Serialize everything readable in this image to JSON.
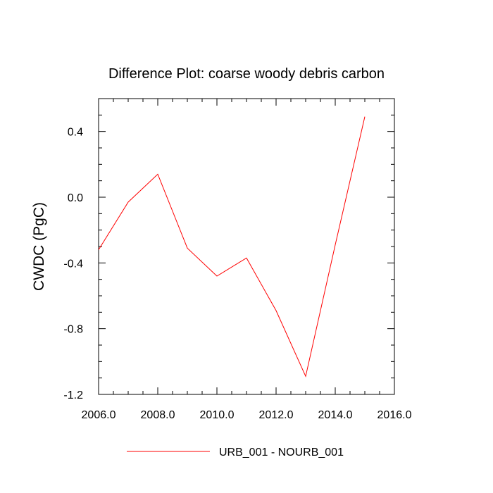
{
  "chart_data": {
    "type": "line",
    "title": "Difference Plot: coarse woody debris carbon",
    "ylabel": "CWDC  (PgC)",
    "xlabel": "",
    "xlim": [
      2006.0,
      2016.0
    ],
    "ylim": [
      -1.2,
      0.6
    ],
    "x_ticks": [
      2006.0,
      2008.0,
      2010.0,
      2012.0,
      2014.0,
      2016.0
    ],
    "x_tick_labels": [
      "2006.0",
      "2008.0",
      "2010.0",
      "2012.0",
      "2014.0",
      "2016.0"
    ],
    "y_ticks": [
      -1.2,
      -0.8,
      -0.4,
      0.0,
      0.4
    ],
    "y_tick_labels": [
      "-1.2",
      "-0.8",
      "-0.4",
      "0.0",
      "0.4"
    ],
    "grid": false,
    "legend_position": "bottom-center",
    "series": [
      {
        "name": "URB_001 - NOURB_001",
        "color": "#ff0000",
        "x": [
          2006,
          2007,
          2008,
          2009,
          2010,
          2011,
          2012,
          2013,
          2014,
          2015
        ],
        "values": [
          -0.32,
          -0.03,
          0.14,
          -0.31,
          -0.48,
          -0.37,
          -0.69,
          -1.09,
          -0.29,
          0.49
        ]
      }
    ]
  }
}
